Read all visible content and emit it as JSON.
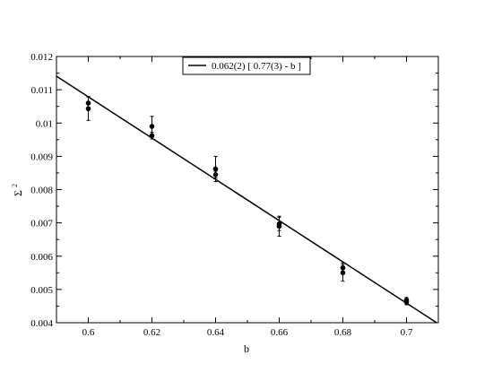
{
  "chart_data": {
    "type": "scatter",
    "title": "",
    "xlabel": "b",
    "ylabel": "Σ",
    "ylabel_sup": "2",
    "xlim": [
      0.59,
      0.71
    ],
    "ylim": [
      0.004,
      0.012
    ],
    "xticks": [
      0.6,
      0.62,
      0.64,
      0.66,
      0.68,
      0.7
    ],
    "xtick_labels": [
      "0.6",
      "0.62",
      "0.64",
      "0.66",
      "0.68",
      "0.7"
    ],
    "yticks": [
      0.004,
      0.005,
      0.006,
      0.007,
      0.008,
      0.009,
      0.01,
      0.011,
      0.012
    ],
    "ytick_labels": [
      "0.004",
      "0.005",
      "0.006",
      "0.007",
      "0.008",
      "0.009",
      "0.01",
      "0.011",
      "0.012"
    ],
    "grid": false,
    "legend_position": "top-center",
    "legend": [
      {
        "label": "0.062(2) [ 0.77(3) - b ]"
      }
    ],
    "points": [
      {
        "x": 0.6,
        "y": 0.0106,
        "err": 0.0002
      },
      {
        "x": 0.6,
        "y": 0.01043,
        "err": 0.00035
      },
      {
        "x": 0.62,
        "y": 0.0099,
        "err": 0.0003
      },
      {
        "x": 0.62,
        "y": 0.00962,
        "err": 0.0001
      },
      {
        "x": 0.64,
        "y": 0.00862,
        "err": 0.00038
      },
      {
        "x": 0.64,
        "y": 0.00845,
        "err": 0.0001
      },
      {
        "x": 0.66,
        "y": 0.00697,
        "err": 0.0002
      },
      {
        "x": 0.66,
        "y": 0.0069,
        "err": 0.0003
      },
      {
        "x": 0.68,
        "y": 0.00565,
        "err": 0.00015
      },
      {
        "x": 0.68,
        "y": 0.0055,
        "err": 0.00025
      },
      {
        "x": 0.7,
        "y": 0.00468,
        "err": 8e-05
      },
      {
        "x": 0.7,
        "y": 0.00462,
        "err": 8e-05
      }
    ],
    "fit_line": {
      "slope": -0.062,
      "intercept_b": 0.774
    }
  }
}
